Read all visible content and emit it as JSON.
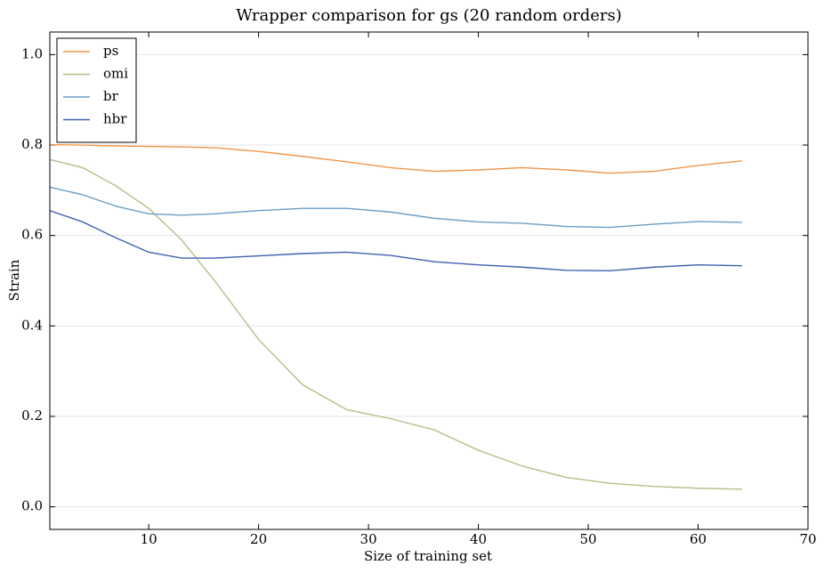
{
  "chart_data": {
    "type": "line",
    "title": "Wrapper comparison for gs (20 random orders)",
    "x_label": "Size of training set",
    "y_label": "Strain",
    "x": [
      1,
      4,
      7,
      10,
      13,
      16,
      20,
      24,
      28,
      32,
      36,
      40,
      44,
      48,
      52,
      56,
      60,
      64
    ],
    "series": [
      {
        "name": "ps",
        "color": "#f0954a",
        "values": [
          0.801,
          0.8,
          0.798,
          0.797,
          0.796,
          0.794,
          0.786,
          0.775,
          0.763,
          0.75,
          0.742,
          0.745,
          0.75,
          0.745,
          0.738,
          0.742,
          0.755,
          0.765
        ]
      },
      {
        "name": "omi",
        "color": "#b5bf89",
        "values": [
          0.768,
          0.75,
          0.71,
          0.66,
          0.59,
          0.5,
          0.37,
          0.27,
          0.215,
          0.195,
          0.17,
          0.125,
          0.09,
          0.065,
          0.052,
          0.045,
          0.041,
          0.039
        ]
      },
      {
        "name": "br",
        "color": "#6a9ec8",
        "values": [
          0.707,
          0.69,
          0.665,
          0.648,
          0.645,
          0.648,
          0.655,
          0.66,
          0.66,
          0.652,
          0.638,
          0.63,
          0.627,
          0.62,
          0.618,
          0.625,
          0.631,
          0.629
        ]
      },
      {
        "name": "hbr",
        "color": "#4060b0",
        "values": [
          0.655,
          0.63,
          0.595,
          0.563,
          0.55,
          0.55,
          0.555,
          0.56,
          0.563,
          0.556,
          0.542,
          0.535,
          0.53,
          0.523,
          0.522,
          0.53,
          0.535,
          0.533
        ]
      }
    ],
    "xlim": [
      1,
      70
    ],
    "xticks": [
      10,
      20,
      30,
      40,
      50,
      60,
      70
    ],
    "ylim": [
      -0.05,
      1.05
    ],
    "yticks": [
      {
        "value": 0,
        "label": "0.0"
      },
      0.2,
      0.4,
      0.6,
      0.8,
      {
        "value": 1,
        "label": "1.0"
      }
    ],
    "grid": true,
    "legend": "upper left"
  }
}
